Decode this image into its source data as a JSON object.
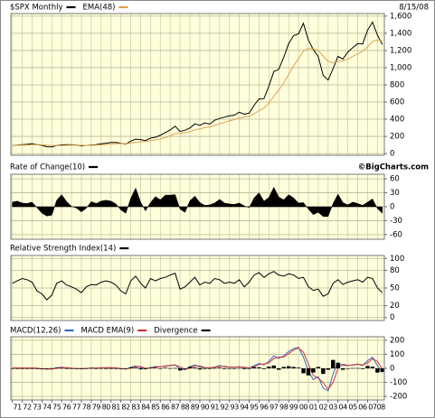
{
  "chart_data": [
    {
      "type": "line",
      "date": "8/15/08",
      "x": [
        1971,
        1971.5,
        1972,
        1972.5,
        1973,
        1973.5,
        1974,
        1974.5,
        1975,
        1975.5,
        1976,
        1976.5,
        1977,
        1977.5,
        1978,
        1978.5,
        1979,
        1979.5,
        1980,
        1980.5,
        1981,
        1981.5,
        1982,
        1982.5,
        1983,
        1983.5,
        1984,
        1984.5,
        1985,
        1985.5,
        1986,
        1986.5,
        1987,
        1987.5,
        1988,
        1988.5,
        1989,
        1989.5,
        1990,
        1990.5,
        1991,
        1991.5,
        1992,
        1992.5,
        1993,
        1993.5,
        1994,
        1994.5,
        1995,
        1995.5,
        1996,
        1996.5,
        1997,
        1997.5,
        1998,
        1998.5,
        1999,
        1999.5,
        2000,
        2000.5,
        2001,
        2001.5,
        2002,
        2002.5,
        2003,
        2003.5,
        2004,
        2004.5,
        2005,
        2005.5,
        2006,
        2006.5,
        2007,
        2007.5,
        2008,
        2008.5
      ],
      "series": [
        {
          "name": "$SPX Monthly",
          "color": "#000000",
          "values": [
            95,
            99,
            104,
            107,
            116,
            104,
            97,
            79,
            77,
            92,
            101,
            104,
            102,
            100,
            89,
            96,
            100,
            104,
            114,
            121,
            130,
            130,
            120,
            109,
            145,
            168,
            163,
            151,
            180,
            190,
            212,
            245,
            274,
            318,
            257,
            272,
            297,
            346,
            329,
            356,
            343,
            388,
            409,
            424,
            438,
            448,
            481,
            458,
            470,
            562,
            636,
            640,
            786,
            954,
            980,
            1120,
            1279,
            1372,
            1394,
            1517,
            1320,
            1211,
            1130,
            911,
            855,
            990,
            1131,
            1101,
            1181,
            1234,
            1280,
            1276,
            1438,
            1530,
            1378,
            1270
          ]
        },
        {
          "name": "EMA(48)",
          "color": "#e0a050",
          "values": [
            95,
            96,
            98,
            100,
            103,
            104,
            102,
            97,
            93,
            93,
            94,
            97,
            98,
            98,
            96,
            96,
            97,
            99,
            102,
            106,
            111,
            116,
            117,
            115,
            121,
            132,
            139,
            141,
            150,
            159,
            170,
            187,
            206,
            231,
            236,
            244,
            256,
            276,
            287,
            303,
            311,
            328,
            346,
            363,
            380,
            395,
            414,
            423,
            434,
            462,
            500,
            531,
            587,
            668,
            737,
            821,
            922,
            1021,
            1103,
            1194,
            1222,
            1219,
            1200,
            1136,
            1074,
            1056,
            1072,
            1079,
            1101,
            1130,
            1163,
            1188,
            1243,
            1306,
            1322,
            1311
          ]
        }
      ],
      "xlim": [
        1970.85,
        2008.7
      ],
      "ylim": [
        -20,
        1630
      ],
      "yticks": [
        0,
        200,
        400,
        600,
        800,
        {
          "value": 1000,
          "label": "1,000"
        },
        {
          "value": 1200,
          "label": "1,200"
        },
        {
          "value": 1400,
          "label": "1,400"
        },
        {
          "value": 1600,
          "label": "1,600"
        }
      ],
      "grid": true
    },
    {
      "type": "area",
      "credit": "©BigCharts.com",
      "x": [
        1971,
        1971.5,
        1972,
        1972.5,
        1973,
        1973.5,
        1974,
        1974.5,
        1975,
        1975.5,
        1976,
        1976.5,
        1977,
        1977.5,
        1978,
        1978.5,
        1979,
        1979.5,
        1980,
        1980.5,
        1981,
        1981.5,
        1982,
        1982.5,
        1983,
        1983.5,
        1984,
        1984.5,
        1985,
        1985.5,
        1986,
        1986.5,
        1987,
        1987.5,
        1988,
        1988.5,
        1989,
        1989.5,
        1990,
        1990.5,
        1991,
        1991.5,
        1992,
        1992.5,
        1993,
        1993.5,
        1994,
        1994.5,
        1995,
        1995.5,
        1996,
        1996.5,
        1997,
        1997.5,
        1998,
        1998.5,
        1999,
        1999.5,
        2000,
        2000.5,
        2001,
        2001.5,
        2002,
        2002.5,
        2003,
        2003.5,
        2004,
        2004.5,
        2005,
        2005.5,
        2006,
        2006.5,
        2007,
        2007.5,
        2008,
        2008.5
      ],
      "series": [
        {
          "name": "Rate of Change(10)",
          "color": "#000000",
          "values": [
            10,
            12,
            8,
            7,
            10,
            -2,
            -14,
            -20,
            -18,
            14,
            26,
            11,
            1,
            -3,
            -11,
            -3,
            11,
            7,
            12,
            14,
            12,
            6,
            -7,
            -14,
            18,
            40,
            10,
            -9,
            9,
            22,
            15,
            25,
            25,
            26,
            -5,
            -12,
            13,
            23,
            9,
            3,
            4,
            8,
            16,
            8,
            6,
            5,
            8,
            2,
            -2,
            19,
            30,
            12,
            20,
            42,
            21,
            15,
            26,
            19,
            8,
            9,
            -5,
            -17,
            -12,
            -21,
            -21,
            7,
            27,
            9,
            4,
            10,
            7,
            3,
            10,
            17,
            -4,
            -14
          ]
        }
      ],
      "xlim": [
        1970.85,
        2008.7
      ],
      "ylim": [
        -70,
        70
      ],
      "yticks": [
        60,
        30,
        0,
        -30,
        -60
      ],
      "grid": true
    },
    {
      "type": "line",
      "x": [
        1971,
        1971.5,
        1972,
        1972.5,
        1973,
        1973.5,
        1974,
        1974.5,
        1975,
        1975.5,
        1976,
        1976.5,
        1977,
        1977.5,
        1978,
        1978.5,
        1979,
        1979.5,
        1980,
        1980.5,
        1981,
        1981.5,
        1982,
        1982.5,
        1983,
        1983.5,
        1984,
        1984.5,
        1985,
        1985.5,
        1986,
        1986.5,
        1987,
        1987.5,
        1988,
        1988.5,
        1989,
        1989.5,
        1990,
        1990.5,
        1991,
        1991.5,
        1992,
        1992.5,
        1993,
        1993.5,
        1994,
        1994.5,
        1995,
        1995.5,
        1996,
        1996.5,
        1997,
        1997.5,
        1998,
        1998.5,
        1999,
        1999.5,
        2000,
        2000.5,
        2001,
        2001.5,
        2002,
        2002.5,
        2003,
        2003.5,
        2004,
        2004.5,
        2005,
        2005.5,
        2006,
        2006.5,
        2007,
        2007.5,
        2008,
        2008.5
      ],
      "series": [
        {
          "name": "Relative Strength Index(14)",
          "color": "#000000",
          "values": [
            58,
            62,
            66,
            64,
            60,
            45,
            40,
            30,
            38,
            58,
            62,
            55,
            52,
            48,
            42,
            52,
            56,
            55,
            60,
            62,
            60,
            55,
            45,
            40,
            62,
            70,
            58,
            50,
            66,
            62,
            66,
            68,
            72,
            75,
            48,
            52,
            60,
            68,
            55,
            60,
            58,
            66,
            64,
            58,
            60,
            58,
            64,
            52,
            60,
            72,
            76,
            68,
            74,
            78,
            72,
            70,
            74,
            72,
            66,
            68,
            52,
            46,
            48,
            36,
            40,
            58,
            64,
            56,
            60,
            62,
            64,
            60,
            68,
            66,
            50,
            42
          ]
        }
      ],
      "xlim": [
        1970.85,
        2008.7
      ],
      "ylim": [
        -5,
        105
      ],
      "yticks": [
        100,
        80,
        50,
        20,
        0
      ],
      "grid": true
    },
    {
      "type": "line",
      "x": [
        1971,
        1971.5,
        1972,
        1972.5,
        1973,
        1973.5,
        1974,
        1974.5,
        1975,
        1975.5,
        1976,
        1976.5,
        1977,
        1977.5,
        1978,
        1978.5,
        1979,
        1979.5,
        1980,
        1980.5,
        1981,
        1981.5,
        1982,
        1982.5,
        1983,
        1983.5,
        1984,
        1984.5,
        1985,
        1985.5,
        1986,
        1986.5,
        1987,
        1987.5,
        1988,
        1988.5,
        1989,
        1989.5,
        1990,
        1990.5,
        1991,
        1991.5,
        1992,
        1992.5,
        1993,
        1993.5,
        1994,
        1994.5,
        1995,
        1995.5,
        1996,
        1996.5,
        1997,
        1997.5,
        1998,
        1998.5,
        1999,
        1999.5,
        2000,
        2000.5,
        2001,
        2001.5,
        2002,
        2002.5,
        2003,
        2003.5,
        2004,
        2004.5,
        2005,
        2005.5,
        2006,
        2006.5,
        2007,
        2007.5,
        2008,
        2008.5
      ],
      "series": [
        {
          "name": "MACD(12,26)",
          "color": "#3366cc",
          "values": [
            3,
            3,
            2,
            2,
            3,
            -1,
            -4,
            -5,
            -4,
            4,
            8,
            3,
            0,
            -1,
            -3,
            -1,
            3,
            2,
            4,
            5,
            5,
            2,
            -3,
            -5,
            8,
            18,
            5,
            -4,
            5,
            13,
            10,
            18,
            21,
            25,
            -4,
            -10,
            12,
            24,
            9,
            3,
            4,
            9,
            20,
            10,
            8,
            7,
            12,
            3,
            2,
            20,
            35,
            25,
            50,
            90,
            70,
            90,
            120,
            140,
            150,
            80,
            -20,
            -80,
            -60,
            -140,
            -160,
            -40,
            40,
            20,
            20,
            25,
            30,
            20,
            55,
            80,
            20,
            -30
          ]
        },
        {
          "name": "MACD EMA(9)",
          "color": "#cc3333",
          "values": [
            3,
            3,
            3,
            2,
            3,
            1,
            -3,
            -5,
            -5,
            0,
            6,
            6,
            2,
            -1,
            -2,
            -2,
            1,
            3,
            3,
            5,
            5,
            4,
            -1,
            -4,
            2,
            13,
            12,
            1,
            1,
            9,
            12,
            14,
            20,
            23,
            11,
            -7,
            1,
            18,
            17,
            6,
            4,
            7,
            15,
            15,
            9,
            8,
            10,
            8,
            3,
            11,
            28,
            30,
            38,
            70,
            80,
            80,
            105,
            130,
            145,
            115,
            30,
            -50,
            -70,
            -100,
            -150,
            -100,
            0,
            30,
            20,
            23,
            28,
            25,
            38,
            68,
            50,
            -5
          ]
        },
        {
          "name": "Divergence",
          "color": "#000000",
          "type": "bar",
          "values": [
            0,
            0,
            -1,
            0,
            0,
            -2,
            -1,
            0,
            1,
            4,
            2,
            -3,
            -2,
            0,
            -1,
            1,
            2,
            -1,
            1,
            0,
            0,
            -2,
            -2,
            -1,
            6,
            5,
            -7,
            -5,
            4,
            4,
            -2,
            4,
            1,
            2,
            -15,
            -3,
            11,
            6,
            -8,
            -3,
            0,
            2,
            5,
            -5,
            -1,
            -1,
            2,
            -5,
            -1,
            9,
            7,
            -5,
            12,
            20,
            -10,
            10,
            15,
            10,
            5,
            -35,
            -50,
            -30,
            10,
            -40,
            -10,
            60,
            40,
            -10,
            0,
            2,
            2,
            -5,
            17,
            12,
            -30,
            -25
          ]
        }
      ],
      "xlim": [
        1970.85,
        2008.7
      ],
      "ylim": [
        -225,
        225
      ],
      "yticks": [
        200,
        100,
        0,
        -100,
        -200
      ],
      "grid": true,
      "xticks": [
        {
          "value": 1971,
          "label": "71"
        },
        {
          "value": 1972,
          "label": "72"
        },
        {
          "value": 1973,
          "label": "73"
        },
        {
          "value": 1974,
          "label": "74"
        },
        {
          "value": 1975,
          "label": "75"
        },
        {
          "value": 1976,
          "label": "76"
        },
        {
          "value": 1977,
          "label": "77"
        },
        {
          "value": 1978,
          "label": "78"
        },
        {
          "value": 1979,
          "label": "79"
        },
        {
          "value": 1980,
          "label": "80"
        },
        {
          "value": 1981,
          "label": "81"
        },
        {
          "value": 1982,
          "label": "82"
        },
        {
          "value": 1983,
          "label": "83"
        },
        {
          "value": 1984,
          "label": "84"
        },
        {
          "value": 1985,
          "label": "85"
        },
        {
          "value": 1986,
          "label": "86"
        },
        {
          "value": 1987,
          "label": "87"
        },
        {
          "value": 1988,
          "label": "88"
        },
        {
          "value": 1989,
          "label": "89"
        },
        {
          "value": 1990,
          "label": "90"
        },
        {
          "value": 1991,
          "label": "91"
        },
        {
          "value": 1992,
          "label": "92"
        },
        {
          "value": 1993,
          "label": "93"
        },
        {
          "value": 1994,
          "label": "94"
        },
        {
          "value": 1995,
          "label": "95"
        },
        {
          "value": 1996,
          "label": "96"
        },
        {
          "value": 1997,
          "label": "97"
        },
        {
          "value": 1998,
          "label": "98"
        },
        {
          "value": 1999,
          "label": "99"
        },
        {
          "value": 2000,
          "label": "00"
        },
        {
          "value": 2001,
          "label": "01"
        },
        {
          "value": 2002,
          "label": "02"
        },
        {
          "value": 2003,
          "label": "03"
        },
        {
          "value": 2004,
          "label": "04"
        },
        {
          "value": 2005,
          "label": "05"
        },
        {
          "value": 2006,
          "label": "06"
        },
        {
          "value": 2007,
          "label": "07"
        },
        {
          "value": 2008,
          "label": "08"
        }
      ]
    }
  ]
}
